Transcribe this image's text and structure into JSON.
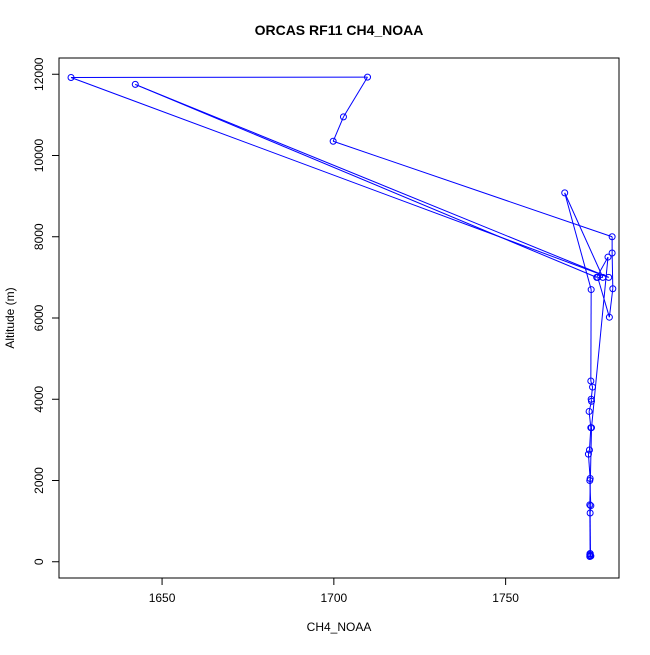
{
  "chart_data": {
    "type": "line",
    "title": "ORCAS RF11 CH4_NOAA",
    "xlabel": "CH4_NOAA",
    "ylabel": "Altitude (m)",
    "xlim": [
      1620,
      1783
    ],
    "ylim": [
      -400,
      12400
    ],
    "xticks": [
      1650,
      1700,
      1750
    ],
    "yticks": [
      0,
      2000,
      4000,
      6000,
      8000,
      10000,
      12000
    ],
    "grid": false,
    "marker": "open-circle",
    "series": [
      {
        "name": "",
        "color": "#0000ff",
        "points": [
          [
            1774.5,
            130
          ],
          [
            1774.6,
            200
          ],
          [
            1774.5,
            170
          ],
          [
            1774.7,
            150
          ],
          [
            1774.6,
            1200
          ],
          [
            1774.8,
            1380
          ],
          [
            1774.5,
            2000
          ],
          [
            1774.6,
            2050
          ],
          [
            1774.1,
            2650
          ],
          [
            1774.4,
            2750
          ],
          [
            1774.8,
            3300
          ],
          [
            1774.3,
            3700
          ],
          [
            1775.0,
            3950
          ],
          [
            1774.9,
            4000
          ],
          [
            1775.3,
            4300
          ],
          [
            1774.8,
            4450
          ],
          [
            1774.9,
            6700
          ],
          [
            1767.2,
            9080
          ],
          [
            1778.3,
            7000
          ],
          [
            1776.8,
            7000
          ],
          [
            1780.2,
            6020
          ],
          [
            1781.2,
            6720
          ],
          [
            1781.0,
            7600
          ],
          [
            1781.0,
            8000
          ],
          [
            1699.8,
            10350
          ],
          [
            1702.8,
            10950
          ],
          [
            1709.8,
            11930
          ],
          [
            1623.5,
            11920
          ],
          [
            1780.0,
            7000
          ],
          [
            1642.2,
            11750
          ],
          [
            1776.5,
            7000
          ],
          [
            1779.8,
            7500
          ],
          [
            1775.0,
            3300
          ],
          [
            1774.5,
            1400
          ],
          [
            1774.6,
            200
          ],
          [
            1774.8,
            140
          ]
        ]
      }
    ]
  }
}
